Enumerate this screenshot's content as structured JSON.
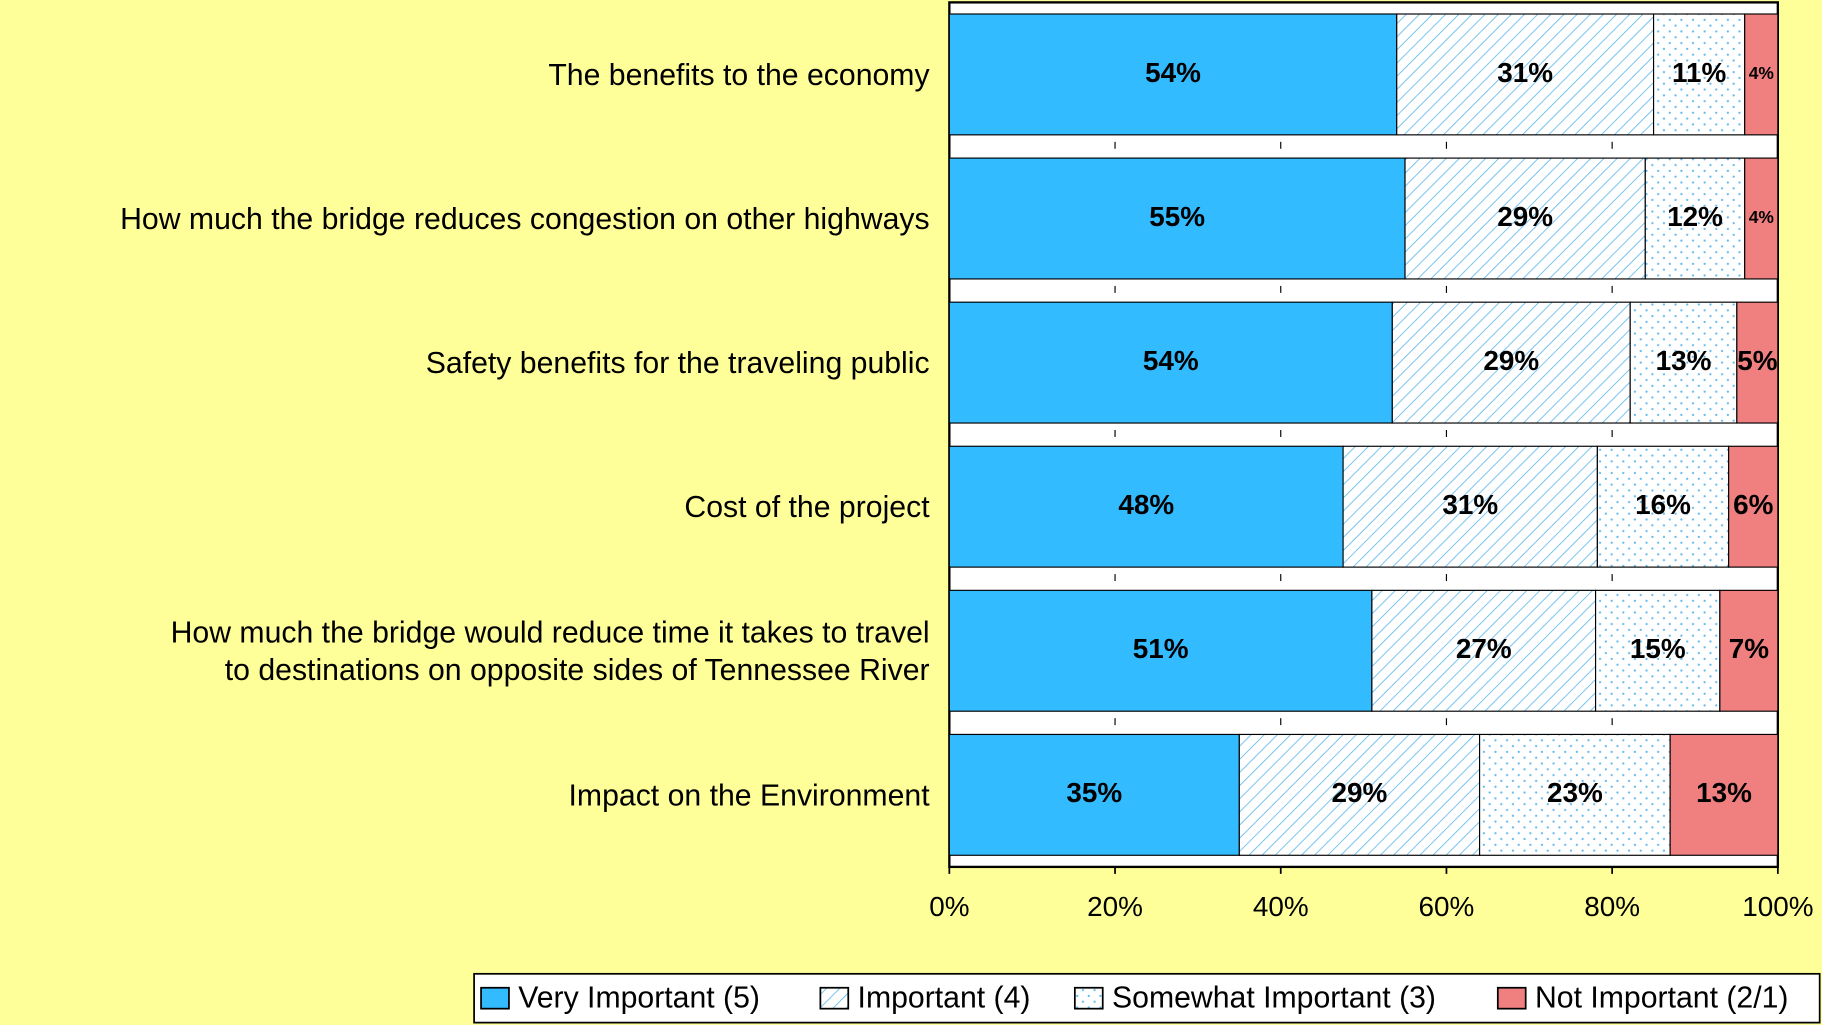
{
  "chart_data": {
    "type": "bar",
    "orientation": "horizontal",
    "stacked": "percent",
    "categories": [
      "The benefits to the economy",
      "How much the bridge reduces congestion on other highways",
      "Safety benefits for the traveling public",
      "Cost of the project",
      "How much the bridge would reduce time it takes to travel\nto destinations on opposite sides of Tennessee River",
      "Impact on the Environment"
    ],
    "series": [
      {
        "name": "Very Important (5)",
        "color": "#33bbff",
        "pattern": "solid",
        "values": [
          54,
          55,
          54,
          48,
          51,
          35
        ],
        "value_labels": [
          "54%",
          "55%",
          "54%",
          "48%",
          "51%",
          "35%"
        ]
      },
      {
        "name": "Important (4)",
        "color": "#66bbee",
        "pattern": "hatch",
        "values": [
          31,
          29,
          29,
          31,
          27,
          29
        ],
        "value_labels": [
          "31%",
          "29%",
          "29%",
          "31%",
          "27%",
          "29%"
        ]
      },
      {
        "name": "Somewhat Important (3)",
        "color": "#66bbee",
        "pattern": "dots",
        "values": [
          11,
          12,
          13,
          16,
          15,
          23
        ],
        "value_labels": [
          "11%",
          "12%",
          "13%",
          "16%",
          "15%",
          "23%"
        ]
      },
      {
        "name": "Not Important (2/1)",
        "color": "#f08080",
        "pattern": "solid",
        "values": [
          4,
          4,
          5,
          6,
          7,
          13
        ],
        "value_labels": [
          "4%",
          "4%",
          "5%",
          "6%",
          "7%",
          "13%"
        ]
      }
    ],
    "xlim": [
      0,
      100
    ],
    "xticks": [
      {
        "value": 0,
        "label": "0%"
      },
      {
        "value": 20,
        "label": "20%"
      },
      {
        "value": 40,
        "label": "40%"
      },
      {
        "value": 60,
        "label": "60%"
      },
      {
        "value": 80,
        "label": "80%"
      },
      {
        "value": 100,
        "label": "100%"
      }
    ],
    "legend": "bottom"
  }
}
